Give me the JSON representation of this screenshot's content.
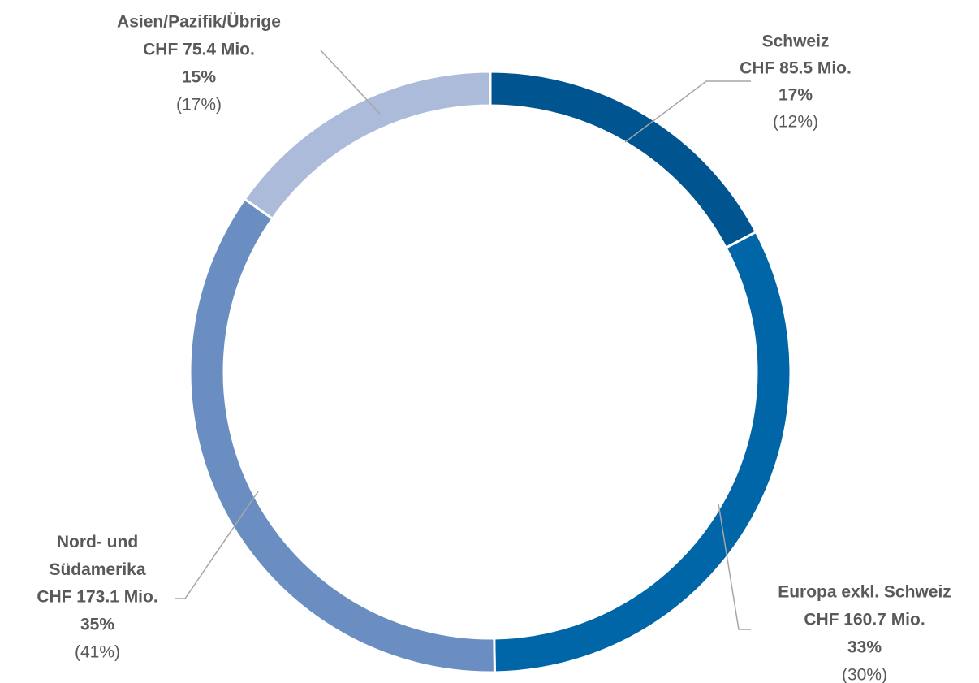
{
  "chart_data": {
    "type": "donut",
    "categories": [
      "Schweiz",
      "Europa exkl. Schweiz",
      "Nord- und Südamerika",
      "Asien/Pazifik/Übrige"
    ],
    "values": [
      85.5,
      160.7,
      173.1,
      75.4
    ],
    "value_labels": [
      "CHF 85.5 Mio.",
      "CHF 160.7 Mio.",
      "CHF 173.1 Mio.",
      "CHF 75.4 Mio."
    ],
    "share_labels": [
      "17%",
      "33%",
      "35%",
      "15%"
    ],
    "prior_share_labels": [
      "(12%)",
      "(30%)",
      "(41%)",
      "(17%)"
    ],
    "colors": [
      "#00548f",
      "#0066a8",
      "#6a8ec2",
      "#abbbd9"
    ]
  }
}
